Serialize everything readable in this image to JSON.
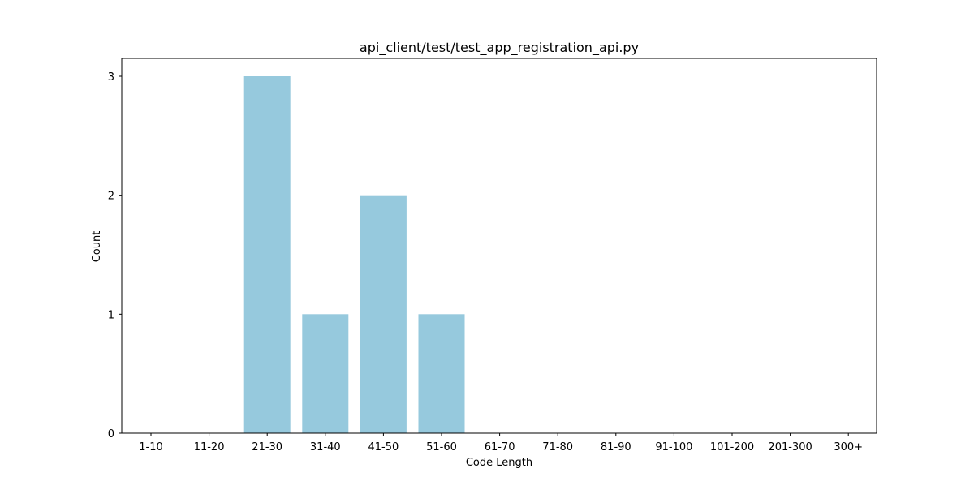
{
  "chart_data": {
    "type": "bar",
    "title": "api_client/test/test_app_registration_api.py",
    "xlabel": "Code Length",
    "ylabel": "Count",
    "categories": [
      "1-10",
      "11-20",
      "21-30",
      "31-40",
      "41-50",
      "51-60",
      "61-70",
      "71-80",
      "81-90",
      "91-100",
      "101-200",
      "201-300",
      "300+"
    ],
    "values": [
      0,
      0,
      3,
      1,
      2,
      1,
      0,
      0,
      0,
      0,
      0,
      0,
      0
    ],
    "ylim": [
      0,
      3.15
    ],
    "yticks": [
      "0",
      "1",
      "2",
      "3"
    ],
    "bar_color": "#96c9dd",
    "grid": false,
    "legend": "none"
  }
}
